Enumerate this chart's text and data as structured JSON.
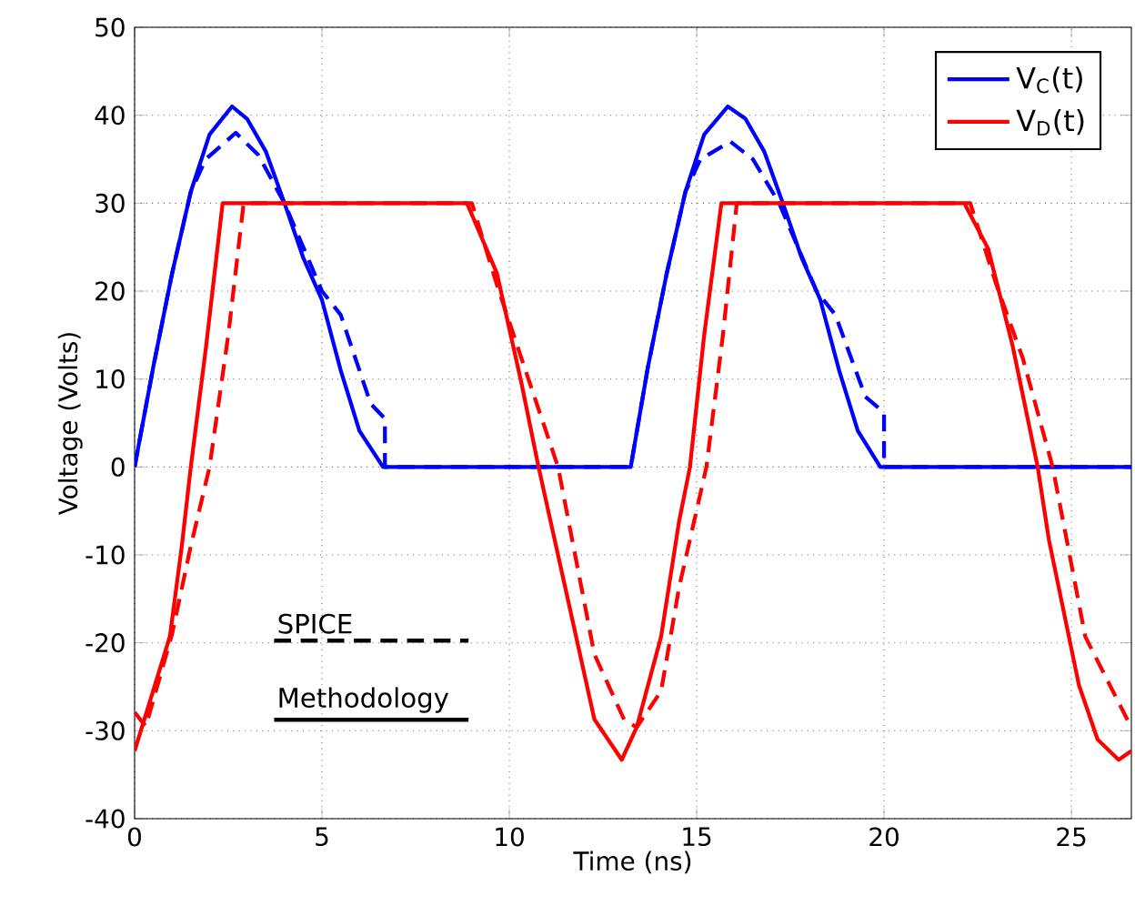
{
  "chart_data": {
    "type": "line",
    "xlabel": "Time (ns)",
    "ylabel": "Voltage (Volts)",
    "xlim": [
      0,
      26.6
    ],
    "ylim": [
      -40,
      50
    ],
    "xticks": [
      0,
      5,
      10,
      15,
      20,
      25
    ],
    "yticks": [
      -40,
      -30,
      -20,
      -10,
      0,
      10,
      20,
      30,
      40,
      50
    ],
    "grid": true,
    "legend": "top right",
    "annotations": [
      "SPICE",
      "Methodology"
    ],
    "series": [
      {
        "name": "V$_{C}$(t)",
        "color": "#0000ff",
        "line_style": "solid",
        "x": [
          0,
          0.5,
          1,
          1.5,
          2,
          2.6,
          3,
          3.5,
          4,
          4.5,
          5,
          5.5,
          6,
          6.63,
          13.24,
          13.7,
          14.2,
          14.7,
          15.2,
          15.83,
          16.3,
          16.8,
          17.3,
          17.8,
          18.3,
          18.8,
          19.3,
          19.9,
          26.6
        ],
        "values": [
          0,
          11.4,
          22,
          31.3,
          37.8,
          41,
          39.6,
          35.9,
          30,
          23.8,
          19,
          11,
          4.1,
          0,
          0,
          11.4,
          22,
          31.3,
          37.8,
          41,
          39.6,
          35.9,
          30,
          23.8,
          19,
          11,
          4.1,
          0,
          0
        ]
      },
      {
        "color": "#0000ff",
        "line_style": "dashed",
        "x": [
          0,
          0.5,
          1,
          1.5,
          1.9,
          2.7,
          3.3,
          4,
          4.5,
          5,
          5.5,
          6.3,
          6.68,
          6.68,
          13.24,
          13.7,
          14.2,
          14.7,
          15.1,
          15.9,
          16.5,
          17.2,
          17.7,
          18.2,
          18.7,
          19.5,
          20.0,
          20.0,
          26.6
        ],
        "values": [
          0,
          11.4,
          22,
          31.3,
          35,
          38,
          35.5,
          30,
          25,
          20,
          17.3,
          7.2,
          5.5,
          0,
          0,
          11.4,
          22,
          31.3,
          35,
          37,
          35,
          30,
          25,
          20,
          17.3,
          8,
          6.2,
          0,
          0
        ]
      },
      {
        "name": "V$_{D}$(t)",
        "color": "#ff0000",
        "line_style": "solid",
        "x": [
          0,
          0.94,
          1.26,
          1.5,
          1.91,
          2.35,
          8.87,
          9.67,
          10.32,
          10.78,
          11.6,
          12.27,
          13.0,
          13.4,
          14.05,
          14.53,
          14.82,
          15.2,
          15.66,
          22.14,
          22.78,
          23.43,
          24.1,
          24.4,
          25.2,
          25.7,
          26.26,
          26.6
        ],
        "values": [
          -32.3,
          -19.3,
          -9,
          0,
          13.8,
          30,
          30,
          22,
          9.6,
          0,
          -15.8,
          -28.7,
          -33.3,
          -29.6,
          -19.3,
          -6.2,
          0,
          15,
          30,
          30,
          24.8,
          13.8,
          0,
          -8.3,
          -24.8,
          -31,
          -33.3,
          -32.3
        ]
      },
      {
        "color": "#ff0000",
        "line_style": "dashed",
        "x": [
          0,
          0.3,
          1,
          1.5,
          2.0,
          2.5,
          2.91,
          9.0,
          9.67,
          10.32,
          11.3,
          12.27,
          13.07,
          13.4,
          14.05,
          14.53,
          15.26,
          15.7,
          16.07,
          22.3,
          23.0,
          23.7,
          24.5,
          25.37,
          26.5,
          26.6
        ],
        "values": [
          -27.9,
          -29.5,
          -19,
          -9,
          0,
          15,
          30,
          30,
          20.7,
          12.4,
          0,
          -21.3,
          -28.8,
          -29.6,
          -25.5,
          -13.7,
          0,
          15,
          30,
          30,
          20.7,
          12.4,
          0,
          -19.3,
          -28.8,
          -29.5
        ]
      }
    ]
  }
}
